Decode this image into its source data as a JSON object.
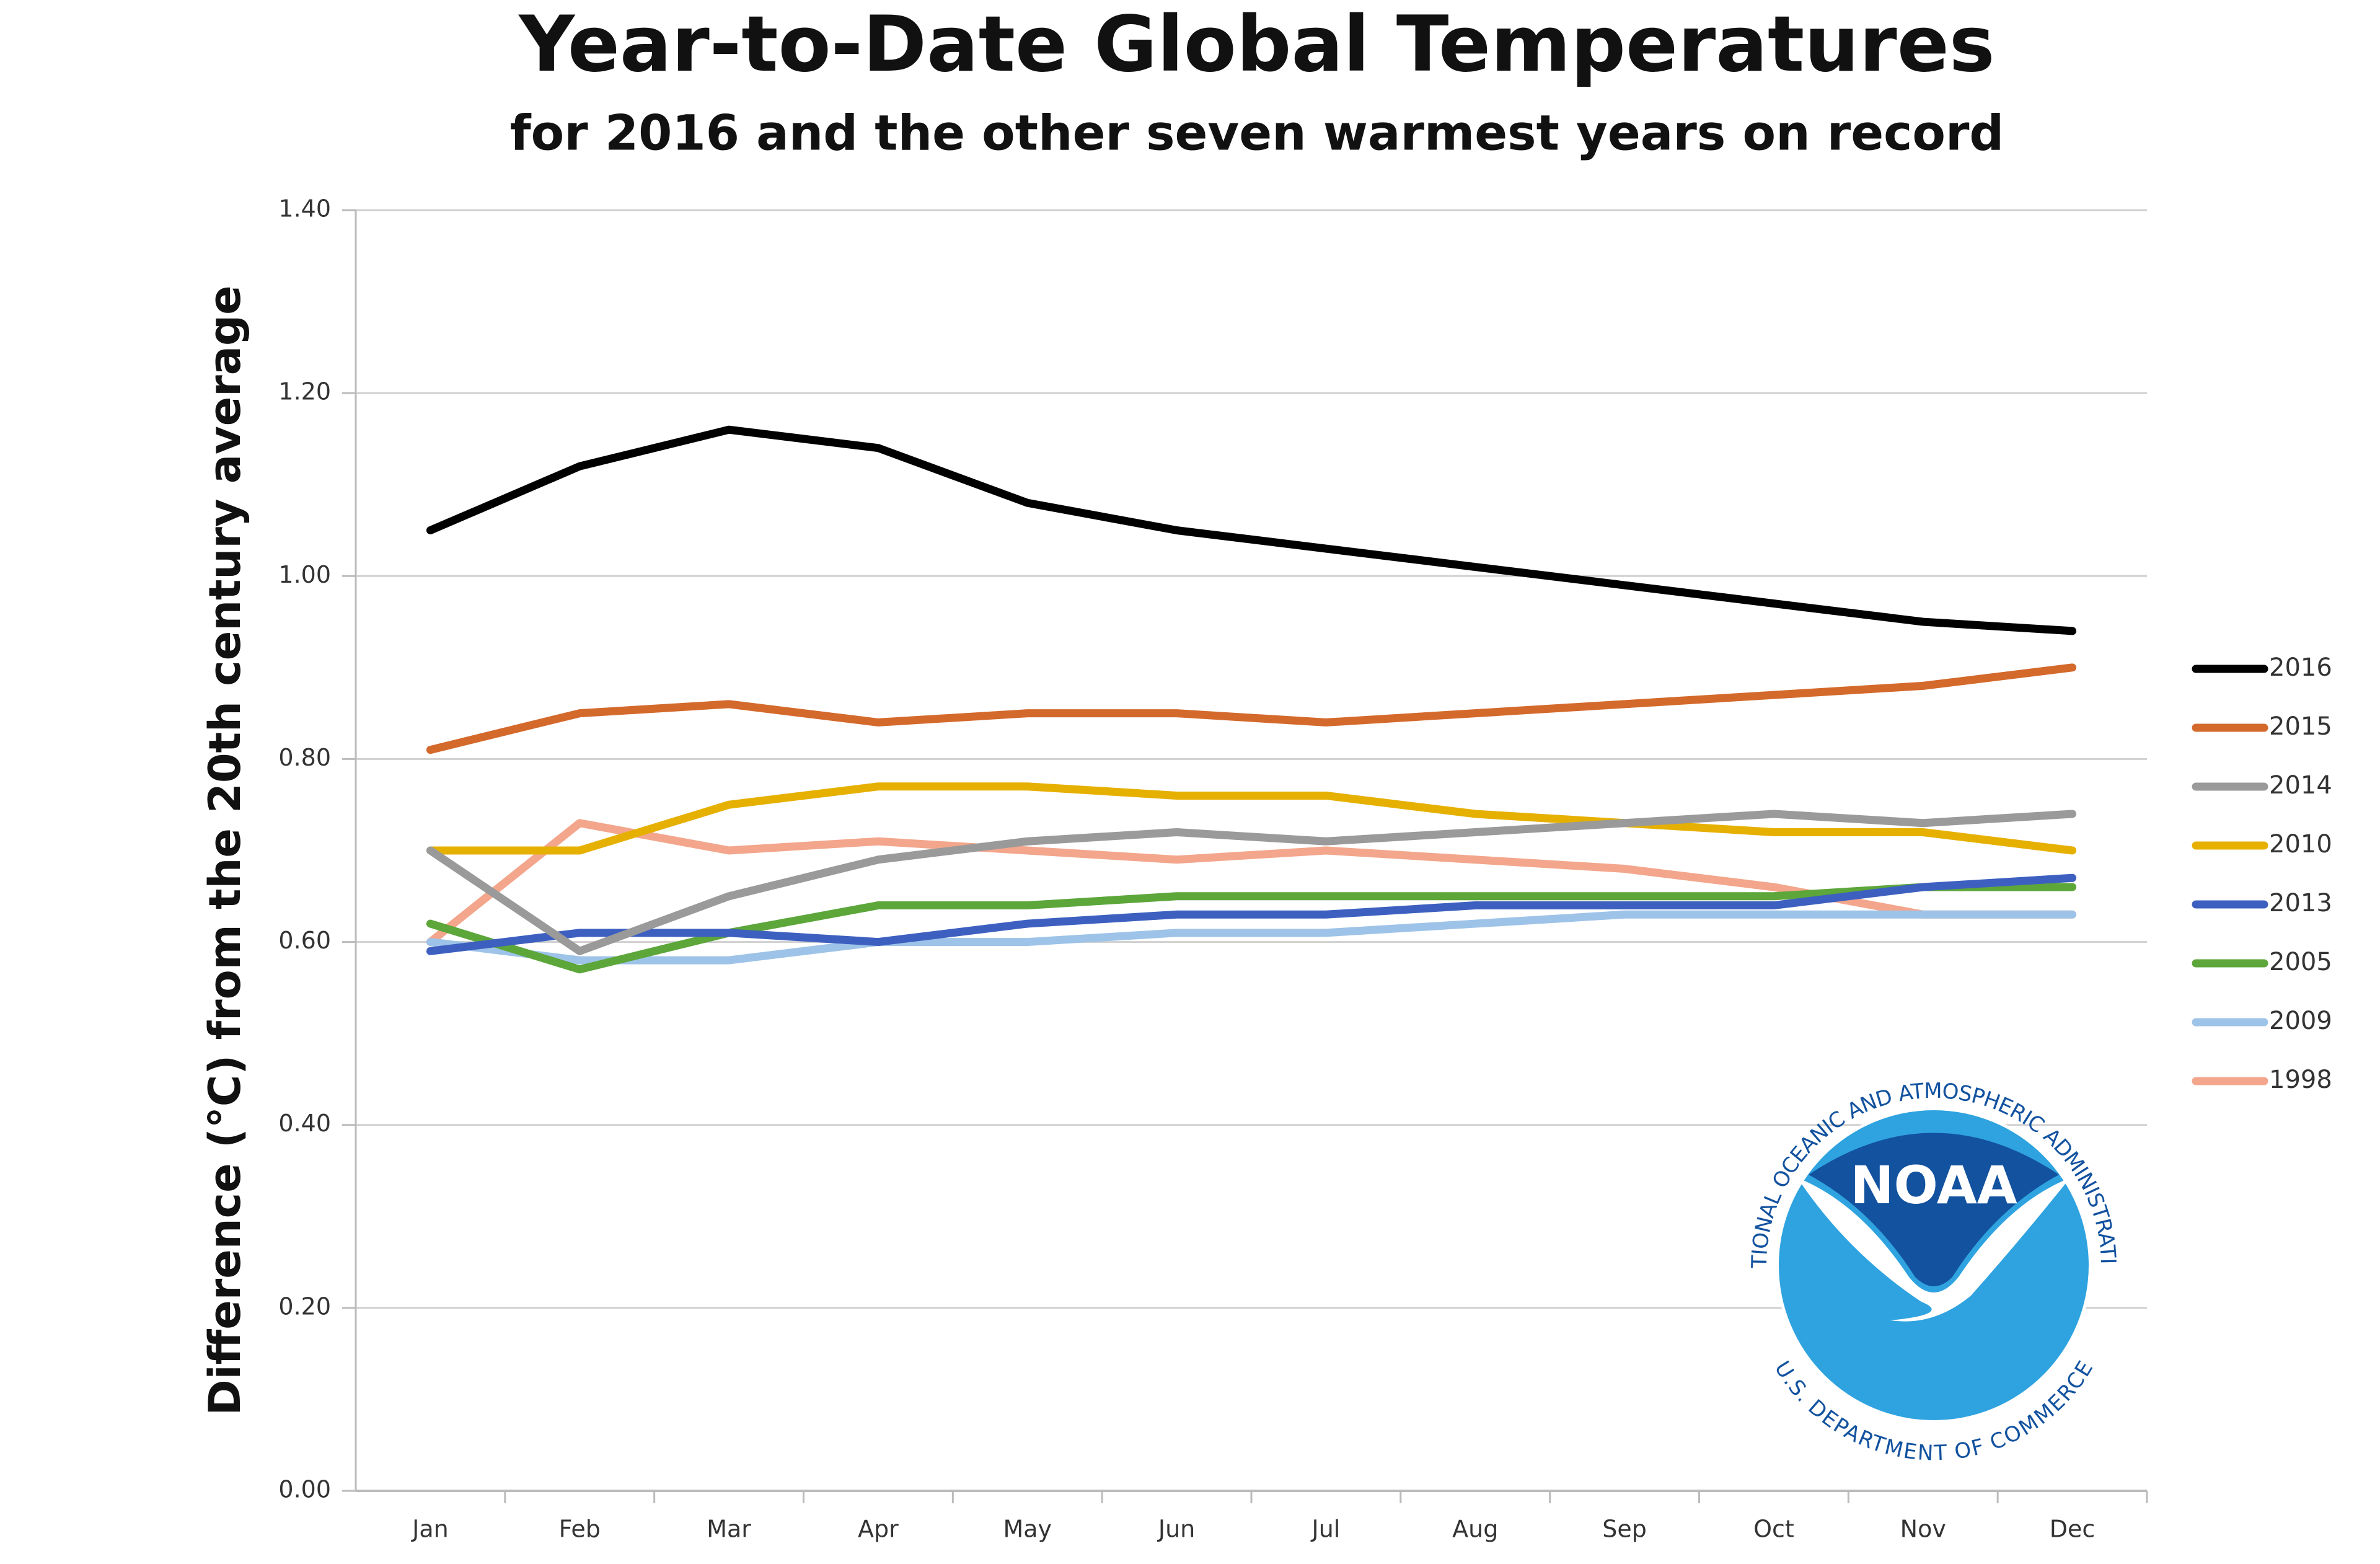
{
  "chart_data": {
    "type": "line",
    "title": "Year-to-Date Global Temperatures",
    "subtitle": "for 2016 and the other seven warmest years on record",
    "y_label": "Difference (°C) from the 20th century average",
    "categories": [
      "Jan",
      "Feb",
      "Mar",
      "Apr",
      "May",
      "Jun",
      "Jul",
      "Aug",
      "Sep",
      "Oct",
      "Nov",
      "Dec"
    ],
    "series": [
      {
        "name": "2016",
        "color": "#000000",
        "values": [
          1.05,
          1.12,
          1.16,
          1.14,
          1.08,
          1.05,
          1.03,
          1.01,
          0.99,
          0.97,
          0.95,
          0.94
        ]
      },
      {
        "name": "2015",
        "color": "#d4692c",
        "values": [
          0.81,
          0.85,
          0.86,
          0.84,
          0.85,
          0.85,
          0.84,
          0.85,
          0.86,
          0.87,
          0.88,
          0.9
        ]
      },
      {
        "name": "2014",
        "color": "#9a9a9a",
        "values": [
          0.7,
          0.59,
          0.65,
          0.69,
          0.71,
          0.72,
          0.71,
          0.72,
          0.73,
          0.74,
          0.73,
          0.74
        ]
      },
      {
        "name": "2010",
        "color": "#e6b000",
        "values": [
          0.7,
          0.7,
          0.75,
          0.77,
          0.77,
          0.76,
          0.76,
          0.74,
          0.73,
          0.72,
          0.72,
          0.7
        ]
      },
      {
        "name": "2013",
        "color": "#3d60c0",
        "values": [
          0.59,
          0.61,
          0.61,
          0.6,
          0.62,
          0.63,
          0.63,
          0.64,
          0.64,
          0.64,
          0.66,
          0.67
        ]
      },
      {
        "name": "2005",
        "color": "#5ca63a",
        "values": [
          0.62,
          0.57,
          0.61,
          0.64,
          0.64,
          0.65,
          0.65,
          0.65,
          0.65,
          0.65,
          0.66,
          0.66
        ]
      },
      {
        "name": "2009",
        "color": "#9ec3e8",
        "values": [
          0.6,
          0.58,
          0.58,
          0.6,
          0.6,
          0.61,
          0.61,
          0.62,
          0.63,
          0.63,
          0.63,
          0.63
        ]
      },
      {
        "name": "1998",
        "color": "#f3a68c",
        "values": [
          0.6,
          0.73,
          0.7,
          0.71,
          0.7,
          0.69,
          0.7,
          0.69,
          0.68,
          0.66,
          0.63,
          0.63
        ]
      }
    ],
    "ylim": [
      0,
      1.4
    ],
    "yticks": [
      {
        "value": 0,
        "label": "0.00"
      },
      {
        "value": 0.2,
        "label": "0.20"
      },
      {
        "value": 0.4,
        "label": "0.40"
      },
      {
        "value": 0.6,
        "label": "0.60"
      },
      {
        "value": 0.8,
        "label": "0.80"
      },
      {
        "value": 1.0,
        "label": "1.00"
      },
      {
        "value": 1.2,
        "label": "1.20"
      },
      {
        "value": 1.4,
        "label": "1.40"
      }
    ],
    "grid": true,
    "legend": "right",
    "logo": {
      "name": "NOAA",
      "top_ring": "NATIONAL OCEANIC AND ATMOSPHERIC ADMINISTRATION",
      "bottom_ring": "U.S. DEPARTMENT OF COMMERCE"
    }
  }
}
